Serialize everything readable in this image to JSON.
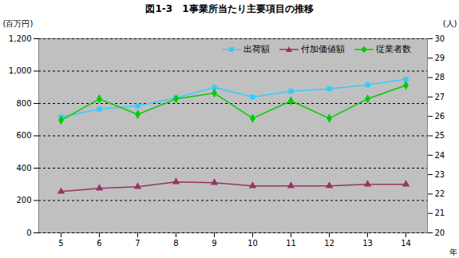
{
  "chart_data": {
    "type": "line",
    "title": "図1-3　1事業所当たり主要項目の推移",
    "xlabel": "年",
    "ylabel": "(百万円)",
    "y2label": "(人)",
    "categories": [
      "5",
      "6",
      "7",
      "8",
      "9",
      "10",
      "11",
      "12",
      "13",
      "14"
    ],
    "series": [
      {
        "name": "出荷額",
        "color": "#33ccff",
        "marker": "square",
        "values": [
          715,
          765,
          785,
          835,
          900,
          840,
          875,
          890,
          915,
          950
        ]
      },
      {
        "name": "付加価値額",
        "color": "#993366",
        "marker": "triangle",
        "values": [
          255,
          275,
          285,
          315,
          310,
          290,
          290,
          290,
          300,
          300
        ]
      },
      {
        "name": "従業者数",
        "color": "#00cc00",
        "marker": "diamond",
        "axis": "y2",
        "values": [
          25.8,
          26.9,
          26.1,
          26.9,
          27.2,
          25.9,
          26.8,
          25.9,
          26.9,
          27.6
        ]
      }
    ],
    "ylim": [
      0,
      1200
    ],
    "yticks": [
      0,
      200,
      400,
      600,
      800,
      {
        "value": 1000,
        "label": "1,000"
      },
      {
        "value": 1200,
        "label": "1,200"
      }
    ],
    "y2lim": [
      20,
      30
    ],
    "y2ticks": [
      20,
      21,
      22,
      23,
      24,
      25,
      26,
      27,
      28,
      29,
      30
    ],
    "grid": true,
    "legend": "top-right"
  }
}
